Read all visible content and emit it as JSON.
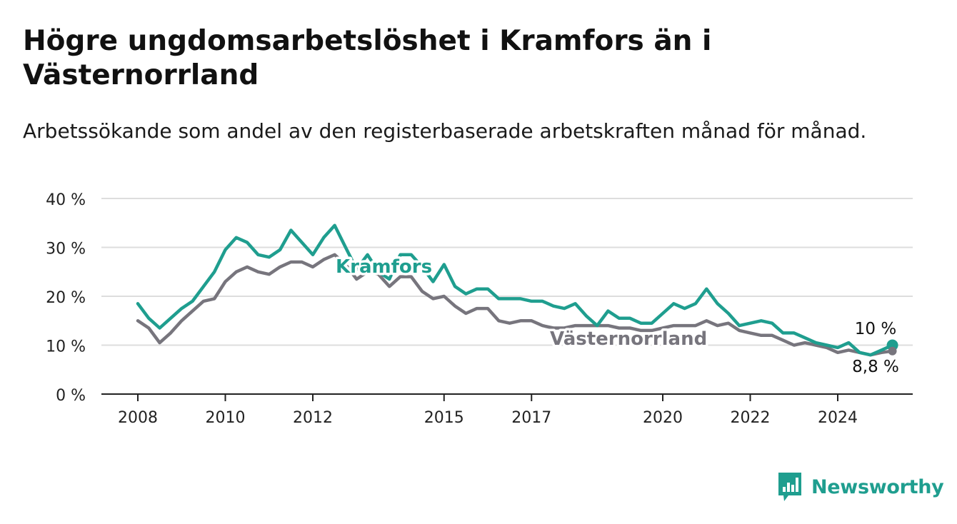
{
  "header": {
    "title": "Högre ungdomsarbetslöshet i Kramfors än i Västernorrland",
    "subtitle": "Arbetssökande som andel av den registerbaserade arbetskraften månad för månad."
  },
  "brand": {
    "name": "Newsworthy",
    "icon": "bar-chart-logo-icon"
  },
  "colors": {
    "kramfors": "#1f9e8f",
    "vasternorrland": "#77757d",
    "grid": "#dddddd",
    "axis": "#222222"
  },
  "chart_data": {
    "type": "line",
    "ylim": [
      0,
      40
    ],
    "y_ticks": [
      0,
      10,
      20,
      30,
      40
    ],
    "y_tick_labels": [
      "0 %",
      "10 %",
      "20 %",
      "30 %",
      "40 %"
    ],
    "x_ticks": [
      2008,
      2010,
      2012,
      2015,
      2017,
      2020,
      2022,
      2024
    ],
    "x_tick_labels": [
      "2008",
      "2010",
      "2012",
      "2015",
      "2017",
      "2020",
      "2022",
      "2024"
    ],
    "grid": true,
    "series": [
      {
        "name": "Kramfors",
        "color": "#1f9e8f",
        "last_label": "10 %",
        "points": [
          [
            2008.0,
            18.5
          ],
          [
            2008.25,
            15.5
          ],
          [
            2008.5,
            13.5
          ],
          [
            2008.75,
            15.5
          ],
          [
            2009.0,
            17.5
          ],
          [
            2009.25,
            19
          ],
          [
            2009.5,
            22
          ],
          [
            2009.75,
            25
          ],
          [
            2010.0,
            29.5
          ],
          [
            2010.25,
            32
          ],
          [
            2010.5,
            31
          ],
          [
            2010.75,
            28.5
          ],
          [
            2011.0,
            28
          ],
          [
            2011.25,
            29.5
          ],
          [
            2011.5,
            33.5
          ],
          [
            2011.75,
            31
          ],
          [
            2012.0,
            28.5
          ],
          [
            2012.25,
            32
          ],
          [
            2012.5,
            34.5
          ],
          [
            2012.75,
            30
          ],
          [
            2013.0,
            25.5
          ],
          [
            2013.25,
            28.5
          ],
          [
            2013.5,
            25
          ],
          [
            2013.75,
            23.5
          ],
          [
            2014.0,
            28.5
          ],
          [
            2014.25,
            28.5
          ],
          [
            2014.5,
            26
          ],
          [
            2014.75,
            23
          ],
          [
            2015.0,
            26.5
          ],
          [
            2015.25,
            22
          ],
          [
            2015.5,
            20.5
          ],
          [
            2015.75,
            21.5
          ],
          [
            2016.0,
            21.5
          ],
          [
            2016.25,
            19.5
          ],
          [
            2016.5,
            19.5
          ],
          [
            2016.75,
            19.5
          ],
          [
            2017.0,
            19
          ],
          [
            2017.25,
            19
          ],
          [
            2017.5,
            18
          ],
          [
            2017.75,
            17.5
          ],
          [
            2018.0,
            18.5
          ],
          [
            2018.25,
            16
          ],
          [
            2018.5,
            14
          ],
          [
            2018.75,
            17
          ],
          [
            2019.0,
            15.5
          ],
          [
            2019.25,
            15.5
          ],
          [
            2019.5,
            14.5
          ],
          [
            2019.75,
            14.5
          ],
          [
            2020.0,
            16.5
          ],
          [
            2020.25,
            18.5
          ],
          [
            2020.5,
            17.5
          ],
          [
            2020.75,
            18.5
          ],
          [
            2021.0,
            21.5
          ],
          [
            2021.25,
            18.5
          ],
          [
            2021.5,
            16.5
          ],
          [
            2021.75,
            14
          ],
          [
            2022.0,
            14.5
          ],
          [
            2022.25,
            15
          ],
          [
            2022.5,
            14.5
          ],
          [
            2022.75,
            12.5
          ],
          [
            2023.0,
            12.5
          ],
          [
            2023.25,
            11.5
          ],
          [
            2023.5,
            10.5
          ],
          [
            2023.75,
            10
          ],
          [
            2024.0,
            9.5
          ],
          [
            2024.25,
            10.5
          ],
          [
            2024.5,
            8.5
          ],
          [
            2024.75,
            8
          ],
          [
            2025.0,
            9
          ],
          [
            2025.25,
            10
          ]
        ]
      },
      {
        "name": "Västernorrland",
        "color": "#77757d",
        "last_label": "8,8 %",
        "points": [
          [
            2008.0,
            15
          ],
          [
            2008.25,
            13.5
          ],
          [
            2008.5,
            10.5
          ],
          [
            2008.75,
            12.5
          ],
          [
            2009.0,
            15
          ],
          [
            2009.25,
            17
          ],
          [
            2009.5,
            19
          ],
          [
            2009.75,
            19.5
          ],
          [
            2010.0,
            23
          ],
          [
            2010.25,
            25
          ],
          [
            2010.5,
            26
          ],
          [
            2010.75,
            25
          ],
          [
            2011.0,
            24.5
          ],
          [
            2011.25,
            26
          ],
          [
            2011.5,
            27
          ],
          [
            2011.75,
            27
          ],
          [
            2012.0,
            26
          ],
          [
            2012.25,
            27.5
          ],
          [
            2012.5,
            28.5
          ],
          [
            2012.75,
            26.5
          ],
          [
            2013.0,
            23.5
          ],
          [
            2013.25,
            25
          ],
          [
            2013.5,
            24.5
          ],
          [
            2013.75,
            22
          ],
          [
            2014.0,
            24
          ],
          [
            2014.25,
            24
          ],
          [
            2014.5,
            21
          ],
          [
            2014.75,
            19.5
          ],
          [
            2015.0,
            20
          ],
          [
            2015.25,
            18
          ],
          [
            2015.5,
            16.5
          ],
          [
            2015.75,
            17.5
          ],
          [
            2016.0,
            17.5
          ],
          [
            2016.25,
            15
          ],
          [
            2016.5,
            14.5
          ],
          [
            2016.75,
            15
          ],
          [
            2017.0,
            15
          ],
          [
            2017.25,
            14
          ],
          [
            2017.5,
            13.5
          ],
          [
            2017.75,
            13.5
          ],
          [
            2018.0,
            14
          ],
          [
            2018.25,
            14
          ],
          [
            2018.5,
            14
          ],
          [
            2018.75,
            14
          ],
          [
            2019.0,
            13.5
          ],
          [
            2019.25,
            13.5
          ],
          [
            2019.5,
            13
          ],
          [
            2019.75,
            13
          ],
          [
            2020.0,
            13.5
          ],
          [
            2020.25,
            14
          ],
          [
            2020.5,
            14
          ],
          [
            2020.75,
            14
          ],
          [
            2021.0,
            15
          ],
          [
            2021.25,
            14
          ],
          [
            2021.5,
            14.5
          ],
          [
            2021.75,
            13
          ],
          [
            2022.0,
            12.5
          ],
          [
            2022.25,
            12
          ],
          [
            2022.5,
            12
          ],
          [
            2022.75,
            11
          ],
          [
            2023.0,
            10
          ],
          [
            2023.25,
            10.5
          ],
          [
            2023.5,
            10
          ],
          [
            2023.75,
            9.5
          ],
          [
            2024.0,
            8.5
          ],
          [
            2024.25,
            9
          ],
          [
            2024.5,
            8.5
          ],
          [
            2024.75,
            8
          ],
          [
            2025.0,
            8.5
          ],
          [
            2025.25,
            8.8
          ]
        ]
      }
    ]
  }
}
